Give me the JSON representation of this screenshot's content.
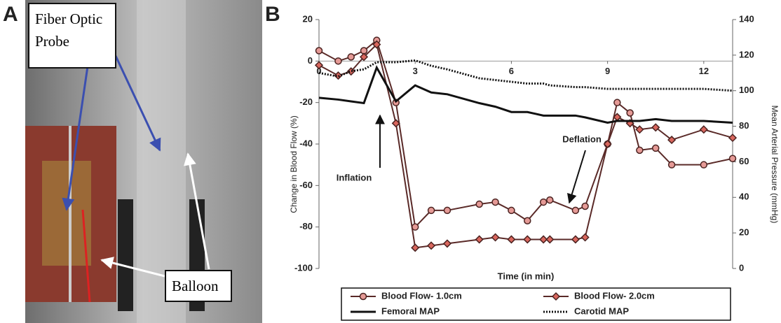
{
  "panel_a": {
    "label": "A",
    "callouts": [
      "Fiber Optic Probe",
      "Balloon"
    ]
  },
  "chart_data": {
    "type": "line",
    "label": "B",
    "x_label": "Time (in min)",
    "y_label": "Change in Blood Flow (%)",
    "y2_label": "Mean Arterial Pressure (mmHg)",
    "annotations": [
      "Inflation",
      "Deflation"
    ],
    "x": [
      0,
      0.6,
      1,
      1.4,
      1.8,
      2.4,
      3,
      3.5,
      4,
      5,
      5.5,
      6,
      6.5,
      7,
      7.2,
      8,
      8.3,
      9,
      9.3,
      9.7,
      10,
      10.5,
      11,
      12,
      12.9
    ],
    "series": [
      {
        "name": "Blood Flow- 1.0cm",
        "color": "#e59a96",
        "marker": "circle",
        "values": [
          5,
          0,
          2,
          5,
          10,
          -20,
          -80,
          -72,
          -72,
          -69,
          -68,
          -72,
          -77,
          -68,
          -67,
          -72,
          -70,
          -40,
          -20,
          -25,
          -43,
          -42,
          -50,
          -50,
          -47
        ]
      },
      {
        "name": "Blood Flow- 2.0cm",
        "color": "#d9675e",
        "marker": "diamond",
        "values": [
          -2,
          -7,
          -5,
          2,
          8,
          -30,
          -90,
          -89,
          -88,
          -86,
          -85,
          -86,
          -86,
          -86,
          -86,
          -86,
          -85,
          -40,
          -27,
          -30,
          -33,
          -32,
          -38,
          -33,
          -37
        ]
      },
      {
        "name": "Femoral MAP",
        "color": "#111111",
        "axis": "y2",
        "dash": "solid",
        "values": [
          96,
          95,
          94,
          93,
          113,
          94,
          103,
          99,
          98,
          93,
          91,
          88,
          88,
          86,
          86,
          86,
          85,
          82,
          83,
          83,
          83,
          84,
          83,
          83,
          82
        ]
      },
      {
        "name": "Carotid MAP",
        "color": "#111111",
        "axis": "y2",
        "dash": "dotted",
        "values": [
          110,
          108,
          111,
          112,
          116,
          116,
          117,
          114,
          112,
          107,
          106,
          105,
          104,
          104,
          103,
          102,
          102,
          101,
          101,
          101,
          101,
          101,
          101,
          101,
          100
        ]
      }
    ],
    "xlim": [
      0,
      12.9
    ],
    "xticks": [
      0,
      3,
      6,
      9,
      12
    ],
    "ylim": [
      -100,
      20
    ],
    "yticks": [
      -100,
      -80,
      -60,
      -40,
      -20,
      0,
      20
    ],
    "y2lim": [
      0,
      140
    ],
    "y2ticks": [
      0,
      20,
      40,
      60,
      80,
      100,
      120,
      140
    ]
  }
}
